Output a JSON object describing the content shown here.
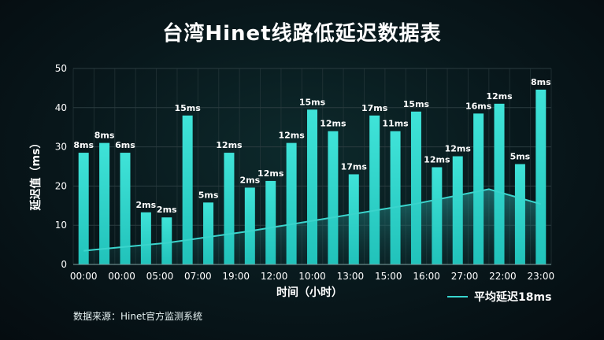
{
  "title": "台湾Hinet线路低延迟数据表",
  "legend_label": "平均延迟18ms",
  "source": "数据来源：Hinet官方监测系统",
  "colors": {
    "bar": "#2fd6cc",
    "line": "#3ad4cc",
    "grid": "#2b3c40",
    "background": "#08171b"
  },
  "chart_data": {
    "type": "bar",
    "title": "台湾Hinet线路低延迟数据表",
    "xlabel": "时间（小时）",
    "ylabel": "延迟值（ms）",
    "ylim": [
      0,
      50
    ],
    "yticks": [
      0,
      10,
      20,
      30,
      40,
      50
    ],
    "grid": true,
    "legend_position": "bottom-right",
    "x_tick_labels": [
      "00:00",
      "00:00",
      "05:00",
      "07:00",
      "19:00",
      "12:00",
      "10:00",
      "13:00",
      "15:00",
      "16:00",
      "27:00",
      "22:00",
      "23:00"
    ],
    "bars": [
      {
        "value": 28.5,
        "label": "8ms"
      },
      {
        "value": 31,
        "label": "8ms"
      },
      {
        "value": 28.5,
        "label": "6ms"
      },
      {
        "value": 13.3,
        "label": "2ms"
      },
      {
        "value": 12,
        "label": "2ms"
      },
      {
        "value": 38,
        "label": "15ms"
      },
      {
        "value": 15.8,
        "label": "5ms"
      },
      {
        "value": 28.5,
        "label": "12ms"
      },
      {
        "value": 19.6,
        "label": "2ms"
      },
      {
        "value": 21.3,
        "label": "12ms"
      },
      {
        "value": 31,
        "label": "12ms"
      },
      {
        "value": 39.5,
        "label": "15ms"
      },
      {
        "value": 34,
        "label": "12ms"
      },
      {
        "value": 23,
        "label": "17ms"
      },
      {
        "value": 38,
        "label": "17ms"
      },
      {
        "value": 34,
        "label": "11ms"
      },
      {
        "value": 39,
        "label": "15ms"
      },
      {
        "value": 24.8,
        "label": "12ms"
      },
      {
        "value": 27.6,
        "label": "12ms"
      },
      {
        "value": 38.5,
        "label": "16ms"
      },
      {
        "value": 41,
        "label": "12ms"
      },
      {
        "value": 25.6,
        "label": "5ms"
      },
      {
        "value": 44.6,
        "label": "8ms"
      }
    ],
    "series": [
      {
        "name": "平均延迟18ms",
        "type": "area",
        "x": [
          0,
          4,
          8,
          12,
          16,
          19.5,
          22
        ],
        "values": [
          3.5,
          5.5,
          8.5,
          12,
          15.5,
          19.2,
          15.4
        ]
      }
    ]
  }
}
